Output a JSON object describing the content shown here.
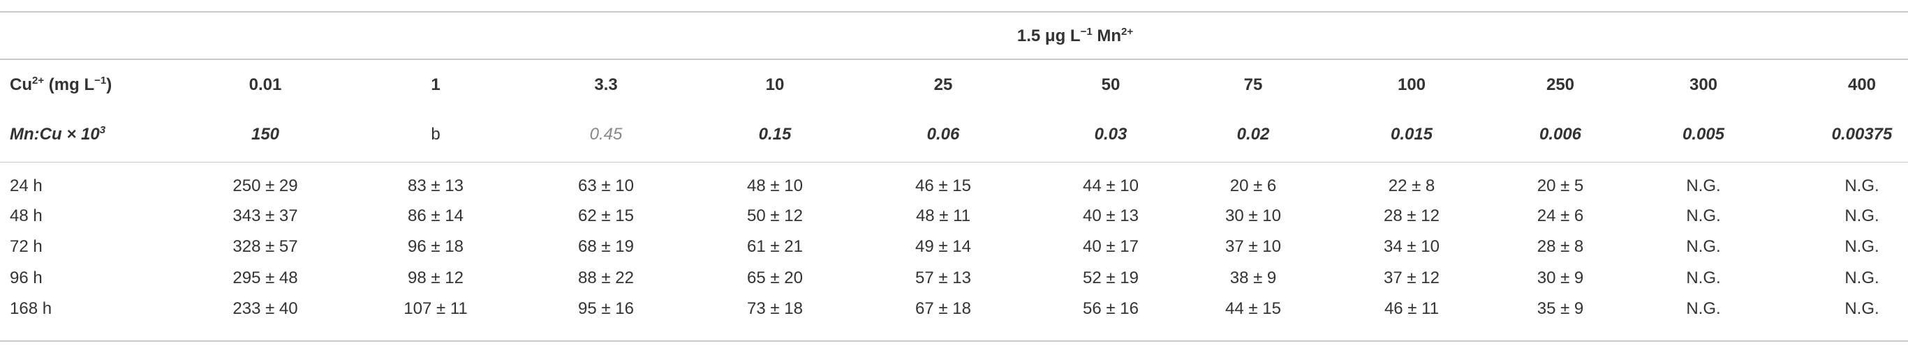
{
  "header": {
    "title": [
      "1.5 μg L",
      "−1",
      " Mn",
      "2+"
    ]
  },
  "table": {
    "cu_label": [
      "Cu",
      "2+",
      " (mg L",
      "−1",
      ")"
    ],
    "cu_values": [
      "0.01",
      "1",
      "3.3",
      "10",
      "25",
      "50",
      "75",
      "100",
      "250",
      "300",
      "400"
    ],
    "ratio_label": [
      "Mn:Cu × 10",
      "3"
    ],
    "ratio_values": [
      "150",
      "b",
      "0.45",
      "0.15",
      "0.06",
      "0.03",
      "0.02",
      "0.015",
      "0.006",
      "0.005",
      "0.00375"
    ],
    "rows": [
      [
        "24 h",
        "250 ± 29",
        "83 ± 13",
        "63 ± 10",
        "48 ± 10",
        "46 ± 15",
        "44 ± 10",
        "20 ± 6",
        "22 ± 8",
        "20 ± 5",
        "N.G.",
        "N.G."
      ],
      [
        "48 h",
        "343 ± 37",
        "86 ± 14",
        "62 ± 15",
        "50 ± 12",
        "48 ± 11",
        "40 ± 13",
        "30 ± 10",
        "28 ± 12",
        "24 ± 6",
        "N.G.",
        "N.G."
      ],
      [
        "72 h",
        "328 ± 57",
        "96 ± 18",
        "68 ± 19",
        "61 ± 21",
        "49 ± 14",
        "40 ± 17",
        "37 ± 10",
        "34 ± 10",
        "28 ± 8",
        "N.G.",
        "N.G."
      ],
      [
        "96 h",
        "295 ± 48",
        "98 ± 12",
        "88 ± 22",
        "65 ± 20",
        "57 ± 13",
        "52 ± 19",
        "38 ± 9",
        "37 ± 12",
        "30 ± 9",
        "N.G.",
        "N.G."
      ],
      [
        "168 h",
        "233 ± 40",
        "107 ± 11",
        "95 ± 16",
        "73 ± 18",
        "67 ± 18",
        "56 ± 16",
        "44 ± 15",
        "46 ± 11",
        "35 ± 9",
        "N.G.",
        "N.G."
      ]
    ]
  }
}
